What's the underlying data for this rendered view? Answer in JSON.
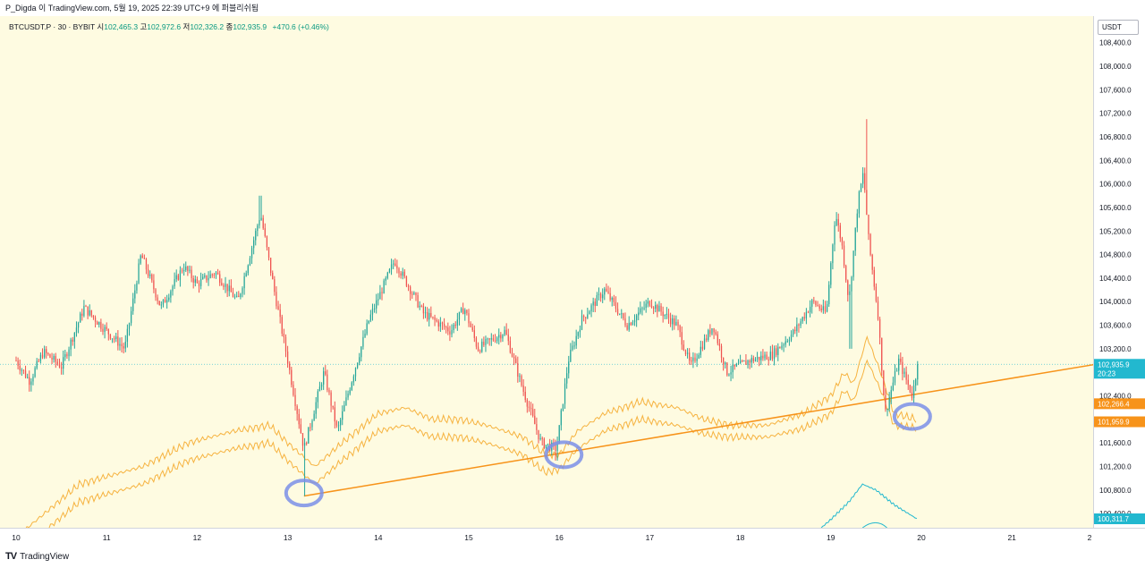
{
  "header": {
    "text": "P_Digda 이 TradingView.com, 5월 19, 2025 22:39 UTC+9 에 퍼블리쉬됨"
  },
  "legend": {
    "symbol": "BTCUSDT.P · 30 · BYBIT",
    "open_label": "시",
    "open": "102,465.3",
    "high_label": "고",
    "high": "102,972.6",
    "low_label": "저",
    "low": "102,326.2",
    "close_label": "종",
    "close": "102,935.9",
    "change": "+470.6 (+0.46%)"
  },
  "price_axis": {
    "unit": "USDT",
    "ticks": [
      "108,400.0",
      "108,000.0",
      "107,600.0",
      "107,200.0",
      "106,800.0",
      "106,400.0",
      "106,000.0",
      "105,600.0",
      "105,200.0",
      "104,800.0",
      "104,400.0",
      "104,000.0",
      "103,600.0",
      "103,200.0",
      "102,800.0",
      "102,400.0",
      "102,000.0",
      "101,600.0",
      "101,200.0",
      "100,800.0",
      "100,400.0"
    ],
    "tags": [
      {
        "name": "last-price",
        "text": "102,935.9",
        "sub": "20:23",
        "value": 102935.9,
        "color": "#22b8cf"
      },
      {
        "name": "trendline-upper",
        "text": "102,266.4",
        "value": 102266.4,
        "color": "#f7931a"
      },
      {
        "name": "trendline-lower",
        "text": "101,959.9",
        "value": 101959.9,
        "color": "#f7931a"
      },
      {
        "name": "indicator",
        "text": "100,311.7",
        "value": 100311.7,
        "color": "#22b8cf"
      }
    ]
  },
  "time_axis": {
    "labels": [
      "10",
      "11",
      "12",
      "13",
      "14",
      "15",
      "16",
      "17",
      "18",
      "19",
      "20",
      "21",
      "2"
    ]
  },
  "footer": {
    "brand": "TradingView",
    "logo": "TV"
  },
  "colors": {
    "up": "#26a69a",
    "down": "#ef5350",
    "line": "#f5a623",
    "trend": "#f7931a",
    "marker": "#7b8fe8",
    "indicator": "#22b8cf"
  },
  "chart_data": {
    "type": "candlestick",
    "symbol": "BTCUSDT.P",
    "interval": "30",
    "ylim": [
      100160,
      108850
    ],
    "x_days": [
      "10",
      "11",
      "12",
      "13",
      "14",
      "15",
      "16",
      "17",
      "18",
      "19",
      "20",
      "21"
    ],
    "anchors": [
      {
        "day": 10.0,
        "price": 103000
      },
      {
        "day": 10.15,
        "price": 102650
      },
      {
        "day": 10.3,
        "price": 103150
      },
      {
        "day": 10.5,
        "price": 102900
      },
      {
        "day": 10.75,
        "price": 103900
      },
      {
        "day": 11.0,
        "price": 103500
      },
      {
        "day": 11.2,
        "price": 103200
      },
      {
        "day": 11.38,
        "price": 104800
      },
      {
        "day": 11.6,
        "price": 103900
      },
      {
        "day": 11.85,
        "price": 104600
      },
      {
        "day": 12.0,
        "price": 104300
      },
      {
        "day": 12.2,
        "price": 104500
      },
      {
        "day": 12.45,
        "price": 104000
      },
      {
        "day": 12.7,
        "price": 105500
      },
      {
        "day": 12.85,
        "price": 104200
      },
      {
        "day": 13.0,
        "price": 103000
      },
      {
        "day": 13.18,
        "price": 101500
      },
      {
        "day": 13.4,
        "price": 102800
      },
      {
        "day": 13.55,
        "price": 101800
      },
      {
        "day": 13.75,
        "price": 102900
      },
      {
        "day": 13.9,
        "price": 103700
      },
      {
        "day": 14.18,
        "price": 104700
      },
      {
        "day": 14.5,
        "price": 103800
      },
      {
        "day": 14.8,
        "price": 103500
      },
      {
        "day": 14.95,
        "price": 103900
      },
      {
        "day": 15.1,
        "price": 103200
      },
      {
        "day": 15.4,
        "price": 103500
      },
      {
        "day": 15.6,
        "price": 102500
      },
      {
        "day": 15.8,
        "price": 101600
      },
      {
        "day": 15.97,
        "price": 101500
      },
      {
        "day": 16.1,
        "price": 103000
      },
      {
        "day": 16.25,
        "price": 103700
      },
      {
        "day": 16.5,
        "price": 104200
      },
      {
        "day": 16.75,
        "price": 103600
      },
      {
        "day": 17.0,
        "price": 104000
      },
      {
        "day": 17.3,
        "price": 103600
      },
      {
        "day": 17.45,
        "price": 102900
      },
      {
        "day": 17.7,
        "price": 103600
      },
      {
        "day": 17.85,
        "price": 102800
      },
      {
        "day": 18.1,
        "price": 103000
      },
      {
        "day": 18.35,
        "price": 103100
      },
      {
        "day": 18.6,
        "price": 103500
      },
      {
        "day": 18.8,
        "price": 104000
      },
      {
        "day": 18.95,
        "price": 103800
      },
      {
        "day": 19.05,
        "price": 105500
      },
      {
        "day": 19.12,
        "price": 105000
      },
      {
        "day": 19.2,
        "price": 104000
      },
      {
        "day": 19.3,
        "price": 105700
      },
      {
        "day": 19.36,
        "price": 106200
      },
      {
        "day": 19.42,
        "price": 105000
      },
      {
        "day": 19.52,
        "price": 103800
      },
      {
        "day": 19.6,
        "price": 102100
      },
      {
        "day": 19.75,
        "price": 103000
      },
      {
        "day": 19.9,
        "price": 102400
      },
      {
        "day": 19.96,
        "price": 102935
      }
    ],
    "spikes": [
      {
        "day": 12.7,
        "high": 105800
      },
      {
        "day": 19.4,
        "high": 107100
      },
      {
        "day": 13.18,
        "low": 100700
      },
      {
        "day": 19.22,
        "low": 103200
      },
      {
        "day": 15.97,
        "low": 101300
      }
    ],
    "bands": {
      "upper": [
        {
          "day": 10.0,
          "price": 100000
        },
        {
          "day": 10.7,
          "price": 100900
        },
        {
          "day": 11.4,
          "price": 101200
        },
        {
          "day": 11.9,
          "price": 101600
        },
        {
          "day": 12.4,
          "price": 101800
        },
        {
          "day": 12.8,
          "price": 101900
        },
        {
          "day": 13.0,
          "price": 101600
        },
        {
          "day": 13.3,
          "price": 101200
        },
        {
          "day": 13.6,
          "price": 101600
        },
        {
          "day": 14.0,
          "price": 102100
        },
        {
          "day": 14.3,
          "price": 102200
        },
        {
          "day": 14.6,
          "price": 102000
        },
        {
          "day": 14.9,
          "price": 102000
        },
        {
          "day": 15.2,
          "price": 101900
        },
        {
          "day": 15.6,
          "price": 101700
        },
        {
          "day": 15.85,
          "price": 101400
        },
        {
          "day": 16.0,
          "price": 101400
        },
        {
          "day": 16.2,
          "price": 101800
        },
        {
          "day": 16.5,
          "price": 102100
        },
        {
          "day": 16.9,
          "price": 102300
        },
        {
          "day": 17.3,
          "price": 102200
        },
        {
          "day": 17.6,
          "price": 102000
        },
        {
          "day": 17.9,
          "price": 101900
        },
        {
          "day": 18.3,
          "price": 101900
        },
        {
          "day": 18.7,
          "price": 102100
        },
        {
          "day": 19.0,
          "price": 102400
        },
        {
          "day": 19.15,
          "price": 102800
        },
        {
          "day": 19.25,
          "price": 102600
        },
        {
          "day": 19.4,
          "price": 103400
        },
        {
          "day": 19.55,
          "price": 102800
        },
        {
          "day": 19.7,
          "price": 102100
        },
        {
          "day": 19.95,
          "price": 102000
        }
      ],
      "lower": [
        {
          "day": 10.0,
          "price": 99700
        },
        {
          "day": 10.7,
          "price": 100600
        },
        {
          "day": 11.4,
          "price": 100900
        },
        {
          "day": 11.9,
          "price": 101300
        },
        {
          "day": 12.4,
          "price": 101500
        },
        {
          "day": 12.8,
          "price": 101600
        },
        {
          "day": 13.0,
          "price": 101300
        },
        {
          "day": 13.3,
          "price": 100900
        },
        {
          "day": 13.6,
          "price": 101300
        },
        {
          "day": 14.0,
          "price": 101800
        },
        {
          "day": 14.3,
          "price": 101900
        },
        {
          "day": 14.6,
          "price": 101700
        },
        {
          "day": 14.9,
          "price": 101700
        },
        {
          "day": 15.2,
          "price": 101600
        },
        {
          "day": 15.6,
          "price": 101400
        },
        {
          "day": 15.85,
          "price": 101100
        },
        {
          "day": 16.0,
          "price": 101150
        },
        {
          "day": 16.2,
          "price": 101500
        },
        {
          "day": 16.5,
          "price": 101800
        },
        {
          "day": 16.9,
          "price": 102000
        },
        {
          "day": 17.3,
          "price": 101900
        },
        {
          "day": 17.6,
          "price": 101750
        },
        {
          "day": 17.9,
          "price": 101700
        },
        {
          "day": 18.3,
          "price": 101700
        },
        {
          "day": 18.7,
          "price": 101850
        },
        {
          "day": 19.0,
          "price": 102100
        },
        {
          "day": 19.15,
          "price": 102500
        },
        {
          "day": 19.25,
          "price": 102300
        },
        {
          "day": 19.4,
          "price": 103000
        },
        {
          "day": 19.55,
          "price": 102500
        },
        {
          "day": 19.7,
          "price": 101900
        },
        {
          "day": 19.95,
          "price": 101850
        }
      ]
    },
    "trendline": {
      "start": {
        "day": 13.18,
        "price": 100700
      },
      "end": {
        "day": 21.0,
        "price": 102700
      }
    },
    "indicator_line": [
      {
        "day": 18.85,
        "price": 100100
      },
      {
        "day": 19.0,
        "price": 100300
      },
      {
        "day": 19.2,
        "price": 100600
      },
      {
        "day": 19.35,
        "price": 100900
      },
      {
        "day": 19.5,
        "price": 100800
      },
      {
        "day": 19.7,
        "price": 100550
      },
      {
        "day": 19.95,
        "price": 100311.7
      }
    ],
    "highlight_circles": [
      {
        "day": 13.18,
        "price": 100750
      },
      {
        "day": 16.05,
        "price": 101400
      },
      {
        "day": 19.9,
        "price": 102050
      }
    ],
    "last_price": 102935.9,
    "last_price_time": "20:23"
  }
}
